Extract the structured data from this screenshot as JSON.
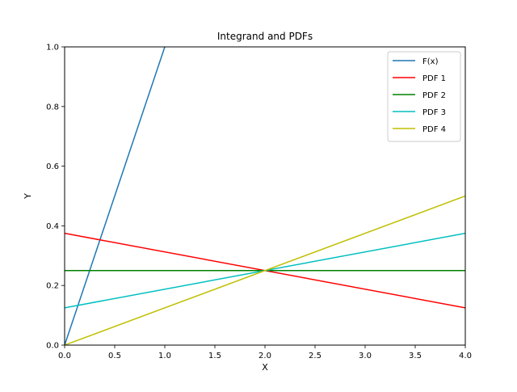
{
  "chart_data": {
    "type": "line",
    "title": "Integrand and PDFs",
    "xlabel": "X",
    "ylabel": "Y",
    "xlim": [
      0.0,
      4.0
    ],
    "ylim": [
      0.0,
      1.0
    ],
    "grid": false,
    "legend_position": "top-right",
    "x_ticks": [
      "0.0",
      "0.5",
      "1.0",
      "1.5",
      "2.0",
      "2.5",
      "3.0",
      "3.5",
      "4.0"
    ],
    "y_ticks": [
      "0.0",
      "0.2",
      "0.4",
      "0.6",
      "0.8",
      "1.0"
    ],
    "series": [
      {
        "name": "F(x)",
        "color": "#1f77b4",
        "x": [
          0.0,
          1.0
        ],
        "y": [
          0.0,
          1.0
        ]
      },
      {
        "name": "PDF 1",
        "color": "#ff0000",
        "x": [
          0.0,
          4.0
        ],
        "y": [
          0.375,
          0.125
        ]
      },
      {
        "name": "PDF 2",
        "color": "#008000",
        "x": [
          0.0,
          4.0
        ],
        "y": [
          0.25,
          0.25
        ]
      },
      {
        "name": "PDF 3",
        "color": "#00bfbf",
        "x": [
          0.0,
          4.0
        ],
        "y": [
          0.125,
          0.375
        ]
      },
      {
        "name": "PDF 4",
        "color": "#bfbf00",
        "x": [
          0.0,
          4.0
        ],
        "y": [
          0.0,
          0.5
        ]
      }
    ]
  }
}
